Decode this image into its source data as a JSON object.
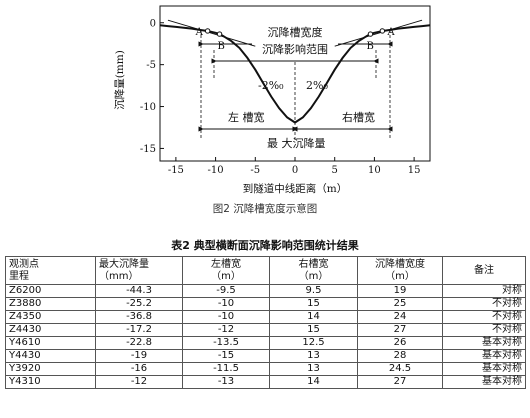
{
  "figure": {
    "caption": "图2   沉降槽宽度示意图",
    "chart_data": {
      "type": "line",
      "x_axis": {
        "label": "到隧道中线距离（m）",
        "ticks": [
          "-15",
          "-10",
          "-5",
          "0",
          "5",
          "10",
          "15"
        ],
        "range": [
          -17,
          17
        ]
      },
      "y_axis": {
        "label": "沉降量(mm)",
        "ticks": [
          "0",
          "-5",
          "-10",
          "-15"
        ],
        "range": [
          -16.5,
          2
        ]
      },
      "series": [
        {
          "x": [
            -17,
            -16,
            -15,
            -14,
            -13,
            -12,
            -11,
            -10,
            -9.5,
            -9,
            -8,
            -7,
            -6,
            -5,
            -4,
            -3,
            -2,
            -1,
            0,
            1,
            2,
            3,
            4,
            5,
            6,
            7,
            8,
            9,
            9.5,
            10,
            11,
            12,
            13,
            14,
            15,
            16,
            17
          ],
          "y": [
            -0.3,
            -0.4,
            -0.5,
            -0.6,
            -0.7,
            -0.85,
            -0.98,
            -1.2,
            -1.35,
            -1.6,
            -2.2,
            -3.0,
            -4.2,
            -5.6,
            -7.2,
            -8.8,
            -10.2,
            -11.3,
            -11.9,
            -11.3,
            -10.2,
            -8.8,
            -7.2,
            -5.6,
            -4.2,
            -3.0,
            -2.2,
            -1.6,
            -1.35,
            -1.2,
            -0.98,
            -0.85,
            -0.7,
            -0.6,
            -0.5,
            -0.4,
            -0.3
          ]
        }
      ],
      "slope_lines": [
        {
          "x": [
            -16,
            -5
          ],
          "y": [
            0.3,
            -2.8
          ]
        },
        {
          "x": [
            16,
            5
          ],
          "y": [
            0.3,
            -2.8
          ]
        }
      ],
      "markers": [
        {
          "label": "A",
          "x": -11,
          "y": -0.98
        },
        {
          "label": "B",
          "x": -9.5,
          "y": -1.35
        },
        {
          "label": "A",
          "x": 11,
          "y": -0.98
        },
        {
          "label": "B",
          "x": 9.5,
          "y": -1.35
        }
      ],
      "annotations": {
        "trough_width": "沉降槽宽度",
        "influence_range": "沉降影响范围",
        "left_slope": "-2%₀",
        "right_slope": "2%₀",
        "left_width": "左 槽宽",
        "right_width": "右槽宽",
        "max_settlement": "最 大沉降量"
      }
    }
  },
  "table": {
    "title": "表2    典型横断面沉降影响范围统计结果",
    "headers": [
      [
        "观测点",
        "里程"
      ],
      [
        "最大沉降量",
        "（mm）"
      ],
      [
        "左槽宽",
        "（m）"
      ],
      [
        "右槽宽",
        "（m）"
      ],
      [
        "沉降槽宽度",
        "（m）"
      ],
      [
        "备注"
      ]
    ],
    "rows": [
      [
        "Z6200",
        "-44.3",
        "-9.5",
        "9.5",
        "19",
        "对称"
      ],
      [
        "Z3880",
        "-25.2",
        "-10",
        "15",
        "25",
        "不对称"
      ],
      [
        "Z4350",
        "-36.8",
        "-10",
        "14",
        "24",
        "不对称"
      ],
      [
        "Z4430",
        "-17.2",
        "-12",
        "15",
        "27",
        "不对称"
      ],
      [
        "Y4610",
        "-22.8",
        "-13.5",
        "12.5",
        "26",
        "基本对称"
      ],
      [
        "Y4430",
        "-19",
        "-15",
        "13",
        "28",
        "基本对称"
      ],
      [
        "Y3920",
        "-16",
        "-11.5",
        "13",
        "24.5",
        "基本对称"
      ],
      [
        "Y4310",
        "-12",
        "-13",
        "14",
        "27",
        "基本对称"
      ]
    ]
  }
}
